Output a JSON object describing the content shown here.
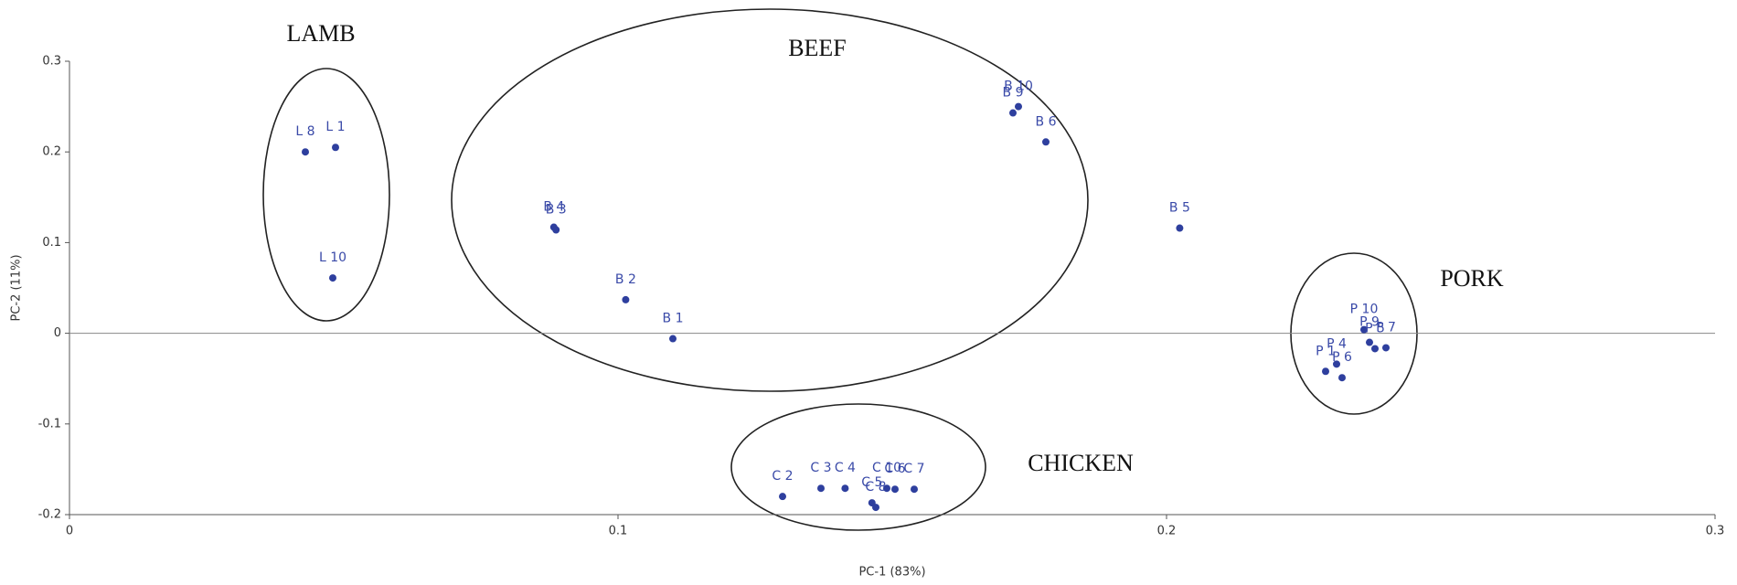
{
  "chart_data": {
    "type": "scatter",
    "x_label": "PC-1 (83%)",
    "y_label": "PC-2 (11%)",
    "annotations": [
      "LAMB",
      "BEEF",
      "PORK",
      "CHICKEN"
    ],
    "series": [
      {
        "color": "#2e3f9e",
        "point_labels": [
          "L 1",
          "L 8",
          "L 10",
          "B 4",
          "B 3",
          "B 2",
          "B 1",
          "B 9",
          "B 10",
          "B 6",
          "B 5",
          "P 10",
          "P 9",
          "P 7",
          "P 4",
          "P 1",
          "P 5",
          "P 6",
          "C 2",
          "C 3",
          "C 4",
          "C 5",
          "C 8",
          "C 10",
          "C 6",
          "C 7"
        ],
        "x": [
          0.0485,
          0.043,
          0.048,
          0.0883,
          0.0887,
          0.1014,
          0.11,
          0.172,
          0.173,
          0.178,
          0.2024,
          0.236,
          0.237,
          0.24,
          0.231,
          0.229,
          0.238,
          0.232,
          0.13,
          0.137,
          0.1414,
          0.1463,
          0.147,
          0.149,
          0.1505,
          0.154
        ],
        "values": [
          0.205,
          0.2,
          0.061,
          0.117,
          0.114,
          0.037,
          -0.006,
          0.243,
          0.25,
          0.211,
          0.116,
          0.004,
          -0.01,
          -0.016,
          -0.034,
          -0.042,
          -0.017,
          -0.049,
          -0.18,
          -0.171,
          -0.171,
          -0.187,
          -0.192,
          -0.171,
          -0.172,
          -0.172
        ]
      }
    ],
    "xlim": [
      0,
      0.3
    ],
    "ylim": [
      -0.2,
      0.3
    ],
    "xticks": [
      0,
      0.1,
      0.2,
      0.3
    ],
    "yticks": [
      -0.2,
      -0.1,
      0,
      0.1,
      0.2,
      0.3
    ]
  }
}
